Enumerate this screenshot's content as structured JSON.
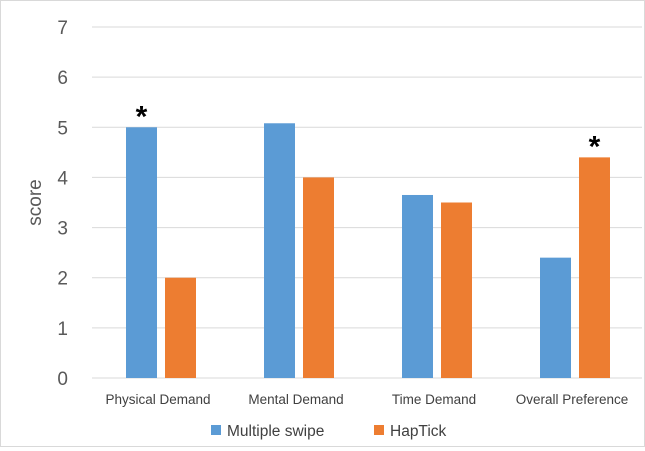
{
  "chart_data": {
    "type": "bar",
    "categories": [
      "Physical Demand",
      "Mental Demand",
      "Time Demand",
      "Overall Preference"
    ],
    "series": [
      {
        "name": "Multiple swipe",
        "values": [
          5.0,
          5.08,
          3.65,
          2.4
        ],
        "color": "#5b9bd5"
      },
      {
        "name": "HapTick",
        "values": [
          2.0,
          4.0,
          3.5,
          4.4
        ],
        "color": "#ed7d31"
      }
    ],
    "ylabel": "score",
    "xlabel": "",
    "ylim": [
      0,
      7
    ],
    "yticks": [
      0,
      1,
      2,
      3,
      4,
      5,
      6,
      7
    ],
    "grid": true,
    "legend_position": "bottom",
    "annotations": [
      {
        "text": "*",
        "category_index": 0,
        "series_index": 0
      },
      {
        "text": "*",
        "category_index": 3,
        "series_index": 1
      }
    ],
    "gridline_color": "#d9d9d9"
  }
}
